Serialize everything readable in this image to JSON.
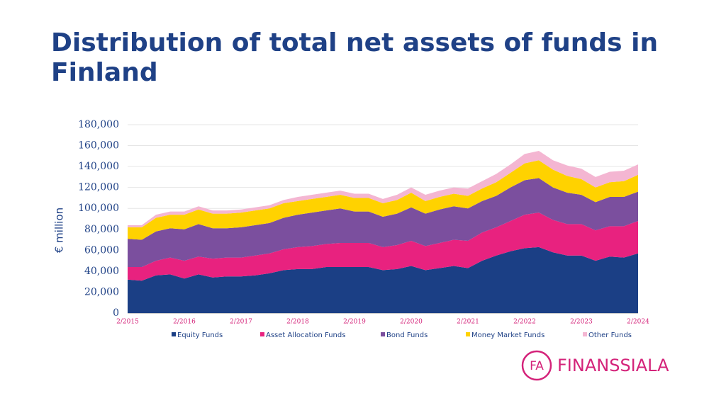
{
  "chart_data": {
    "type": "stacked_area",
    "title": "Distribution of total net assets of funds in Finland",
    "y_label": "€ million",
    "categories": [
      "2/2015",
      null,
      null,
      null,
      "2/2016",
      null,
      null,
      null,
      "2/2017",
      null,
      null,
      null,
      "2/2018",
      null,
      null,
      null,
      "2/2019",
      null,
      null,
      null,
      "2/2020",
      null,
      null,
      null,
      "2/2021",
      null,
      null,
      null,
      "2/2022",
      null,
      null,
      null,
      "2/2023",
      null,
      null,
      null,
      "2/2024"
    ],
    "series": [
      {
        "name": "Equity Funds",
        "color": "#1b3f85",
        "values": [
          32000,
          31000,
          36000,
          37000,
          33000,
          37000,
          34000,
          35000,
          35000,
          36000,
          38000,
          41000,
          42000,
          42000,
          44000,
          44000,
          44000,
          44000,
          41000,
          42000,
          45000,
          41000,
          43000,
          45000,
          43000,
          50000,
          55000,
          59000,
          62000,
          63000,
          58000,
          55000,
          55000,
          50000,
          54000,
          53000,
          57000
        ]
      },
      {
        "name": "Asset Allocation Funds",
        "color": "#e8227f",
        "values": [
          12000,
          13000,
          14000,
          16000,
          17000,
          17000,
          18000,
          18000,
          18000,
          19000,
          19000,
          20000,
          21000,
          22000,
          22000,
          23000,
          23000,
          23000,
          22000,
          23000,
          24000,
          23000,
          24000,
          25000,
          26000,
          27000,
          27000,
          29000,
          32000,
          33000,
          31000,
          30000,
          30000,
          29000,
          29000,
          30000,
          31000
        ]
      },
      {
        "name": "Bond Funds",
        "color": "#7b4f9e",
        "values": [
          27000,
          26000,
          28000,
          28000,
          30000,
          31000,
          29000,
          28000,
          29000,
          29000,
          29000,
          30000,
          31000,
          32000,
          32000,
          33000,
          30000,
          30000,
          29000,
          30000,
          32000,
          31000,
          32000,
          32000,
          31000,
          30000,
          30000,
          32000,
          33000,
          33000,
          31000,
          30000,
          28000,
          27000,
          28000,
          28000,
          28000
        ]
      },
      {
        "name": "Money Market Funds",
        "color": "#ffd200",
        "values": [
          11000,
          12000,
          13000,
          13000,
          14000,
          14000,
          14000,
          14000,
          14000,
          14000,
          14000,
          14000,
          13000,
          13000,
          13000,
          13000,
          13000,
          13000,
          13000,
          13000,
          14000,
          12000,
          12000,
          12000,
          12000,
          12000,
          13000,
          14000,
          16000,
          17000,
          17000,
          16000,
          15000,
          14000,
          14000,
          15000,
          16000
        ]
      },
      {
        "name": "Other Funds",
        "color": "#f4b6d2",
        "values": [
          2000,
          2000,
          3000,
          3000,
          3000,
          3000,
          3000,
          3000,
          3000,
          3000,
          3000,
          3000,
          4000,
          4000,
          4000,
          4000,
          4000,
          4000,
          4000,
          5000,
          5000,
          6000,
          6000,
          6000,
          7000,
          7000,
          8000,
          8000,
          9000,
          9000,
          9000,
          10000,
          10000,
          10000,
          10000,
          10000,
          10000
        ]
      }
    ],
    "ylim": [
      0,
      180000
    ],
    "yticks": [
      0,
      {
        "value": 20000,
        "label": "20,000"
      },
      {
        "value": 40000,
        "label": "40,000"
      },
      {
        "value": 60000,
        "label": "60,000"
      },
      {
        "value": 80000,
        "label": "80,000"
      },
      {
        "value": 100000,
        "label": "100,000"
      },
      {
        "value": 120000,
        "label": "120,000"
      },
      {
        "value": 140000,
        "label": "140,000"
      },
      {
        "value": 160000,
        "label": "160,000"
      },
      {
        "value": 180000,
        "label": "180,000"
      }
    ],
    "grid": true,
    "legend": "bottom"
  },
  "logo": {
    "mark": "FA",
    "text": "FINANSSIALA"
  }
}
